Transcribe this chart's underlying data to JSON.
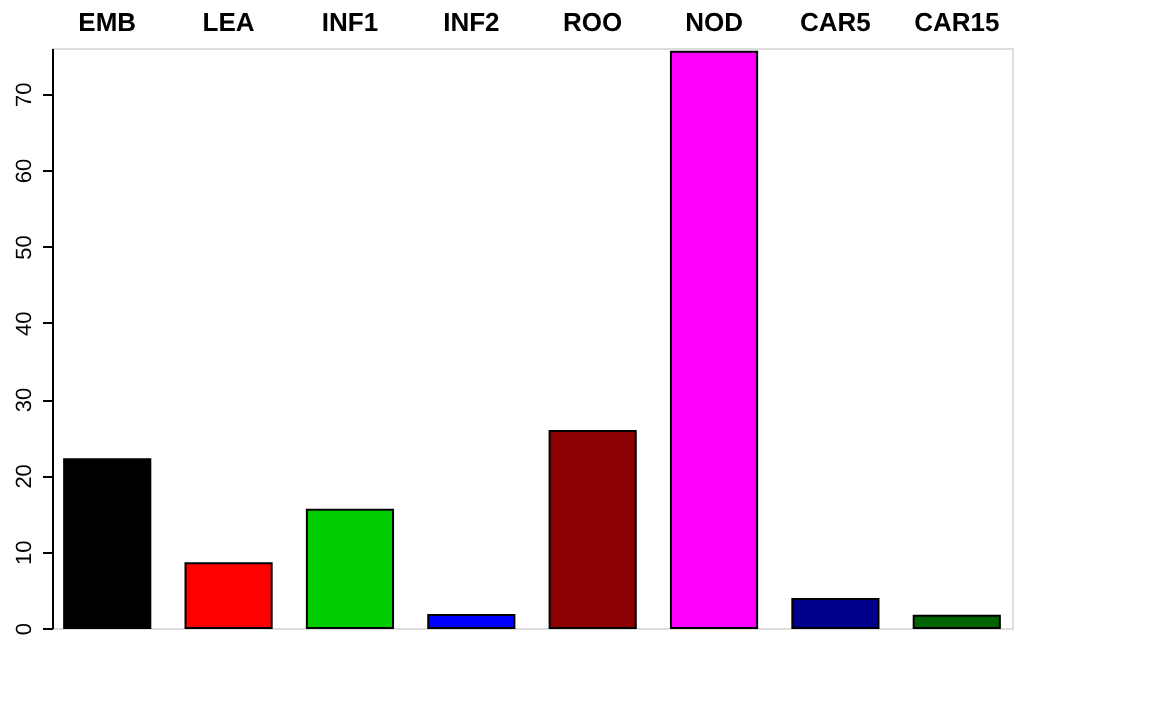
{
  "chart_data": {
    "type": "bar",
    "categories": [
      "EMB",
      "LEA",
      "INF1",
      "INF2",
      "ROO",
      "NOD",
      "CAR5",
      "CAR15"
    ],
    "values": [
      22.1,
      8.5,
      15.5,
      1.7,
      25.8,
      75.5,
      3.8,
      1.6
    ],
    "colors": [
      "#000000",
      "#ff0000",
      "#00cd00",
      "#0000ff",
      "#8b0000",
      "#ff00ff",
      "#00008b",
      "#006400"
    ],
    "ylim": [
      0,
      76
    ],
    "yticks": [
      0,
      10,
      20,
      30,
      40,
      50,
      60,
      70
    ],
    "grid": false
  }
}
